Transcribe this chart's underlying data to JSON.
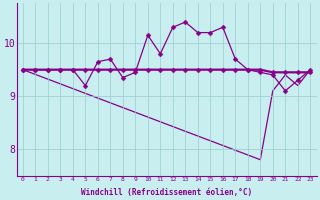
{
  "xlabel": "Windchill (Refroidissement éolien,°C)",
  "x": [
    0,
    1,
    2,
    3,
    4,
    5,
    6,
    7,
    8,
    9,
    10,
    11,
    12,
    13,
    14,
    15,
    16,
    17,
    18,
    19,
    20,
    21,
    22,
    23
  ],
  "line_wavy": [
    9.5,
    9.5,
    9.5,
    9.5,
    9.5,
    9.2,
    9.65,
    9.7,
    9.35,
    9.45,
    10.15,
    9.8,
    10.3,
    10.4,
    10.2,
    10.2,
    10.3,
    9.7,
    9.5,
    9.45,
    9.4,
    9.1,
    9.3,
    9.5
  ],
  "line_flat_x": [
    0,
    1,
    2,
    3,
    4,
    5,
    6,
    7,
    8,
    9,
    10,
    11,
    12,
    13,
    14,
    15,
    16,
    17,
    18,
    19,
    20,
    21,
    22,
    23
  ],
  "line_flat_y": [
    9.5,
    9.5,
    9.5,
    9.5,
    9.5,
    9.5,
    9.5,
    9.5,
    9.5,
    9.5,
    9.5,
    9.5,
    9.5,
    9.5,
    9.5,
    9.5,
    9.5,
    9.5,
    9.5,
    9.5,
    9.45,
    9.45,
    9.45,
    9.45
  ],
  "line_diag_x": [
    0,
    19,
    20,
    21,
    22,
    23
  ],
  "line_diag_y": [
    9.5,
    7.8,
    9.1,
    9.4,
    9.2,
    9.5
  ],
  "line_color": "#880088",
  "bg_color": "#c8eef0",
  "grid_color": "#99cccc",
  "ylim": [
    7.5,
    10.75
  ],
  "yticks": [
    8,
    9,
    10
  ],
  "xlim": [
    -0.5,
    23.5
  ],
  "figsize": [
    3.2,
    2.0
  ],
  "dpi": 100
}
